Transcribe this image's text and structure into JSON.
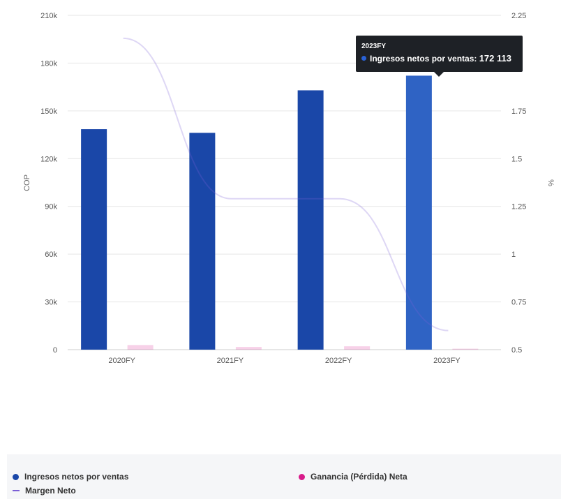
{
  "chart_data": {
    "type": "bar",
    "categories": [
      "2020FY",
      "2021FY",
      "2022FY",
      "2023FY"
    ],
    "series": [
      {
        "name": "Ingresos netos por ventas",
        "type": "bar",
        "axis": "left",
        "color": "#1a47a8",
        "highlight_color": "#2f63c4",
        "values": [
          138500,
          136200,
          162900,
          172113
        ]
      },
      {
        "name": "Ganancia (Pérdida) Neta",
        "type": "bar",
        "axis": "left",
        "color": "#d81b8a",
        "values": [
          2900,
          1700,
          2100,
          600
        ]
      },
      {
        "name": "Margen Neto",
        "type": "line",
        "axis": "right",
        "color": "#7b5fd6",
        "values": [
          2.13,
          1.29,
          1.29,
          0.6
        ]
      }
    ],
    "left_axis": {
      "label": "COP",
      "ylim": [
        0,
        210000
      ],
      "ticks": [
        0,
        30000,
        60000,
        90000,
        120000,
        150000,
        180000,
        210000
      ],
      "tick_labels": [
        "0",
        "30k",
        "60k",
        "90k",
        "120k",
        "150k",
        "180k",
        "210k"
      ]
    },
    "right_axis": {
      "label": "%",
      "ylim": [
        0.5,
        2.25
      ],
      "ticks": [
        0.5,
        0.75,
        1,
        1.25,
        1.5,
        1.75,
        2,
        2.25
      ],
      "tick_labels": [
        "0.5",
        "0.75",
        "1",
        "1.25",
        "1.5",
        "1.75",
        "2",
        "2.25"
      ]
    },
    "grid": true,
    "legend_position": "bottom",
    "highlighted_category": "2023FY"
  },
  "tooltip": {
    "title": "2023FY",
    "series_label": "Ingresos netos por ventas: ",
    "value": "172 113"
  },
  "legend": {
    "items": [
      {
        "label": "Ingresos netos por ventas",
        "marker": "dot",
        "color": "#1a47a8"
      },
      {
        "label": "Ganancia (Pérdida) Neta",
        "marker": "dot",
        "color": "#d81b8a"
      },
      {
        "label": "Margen Neto",
        "marker": "line",
        "color": "#7b5fd6"
      }
    ]
  }
}
